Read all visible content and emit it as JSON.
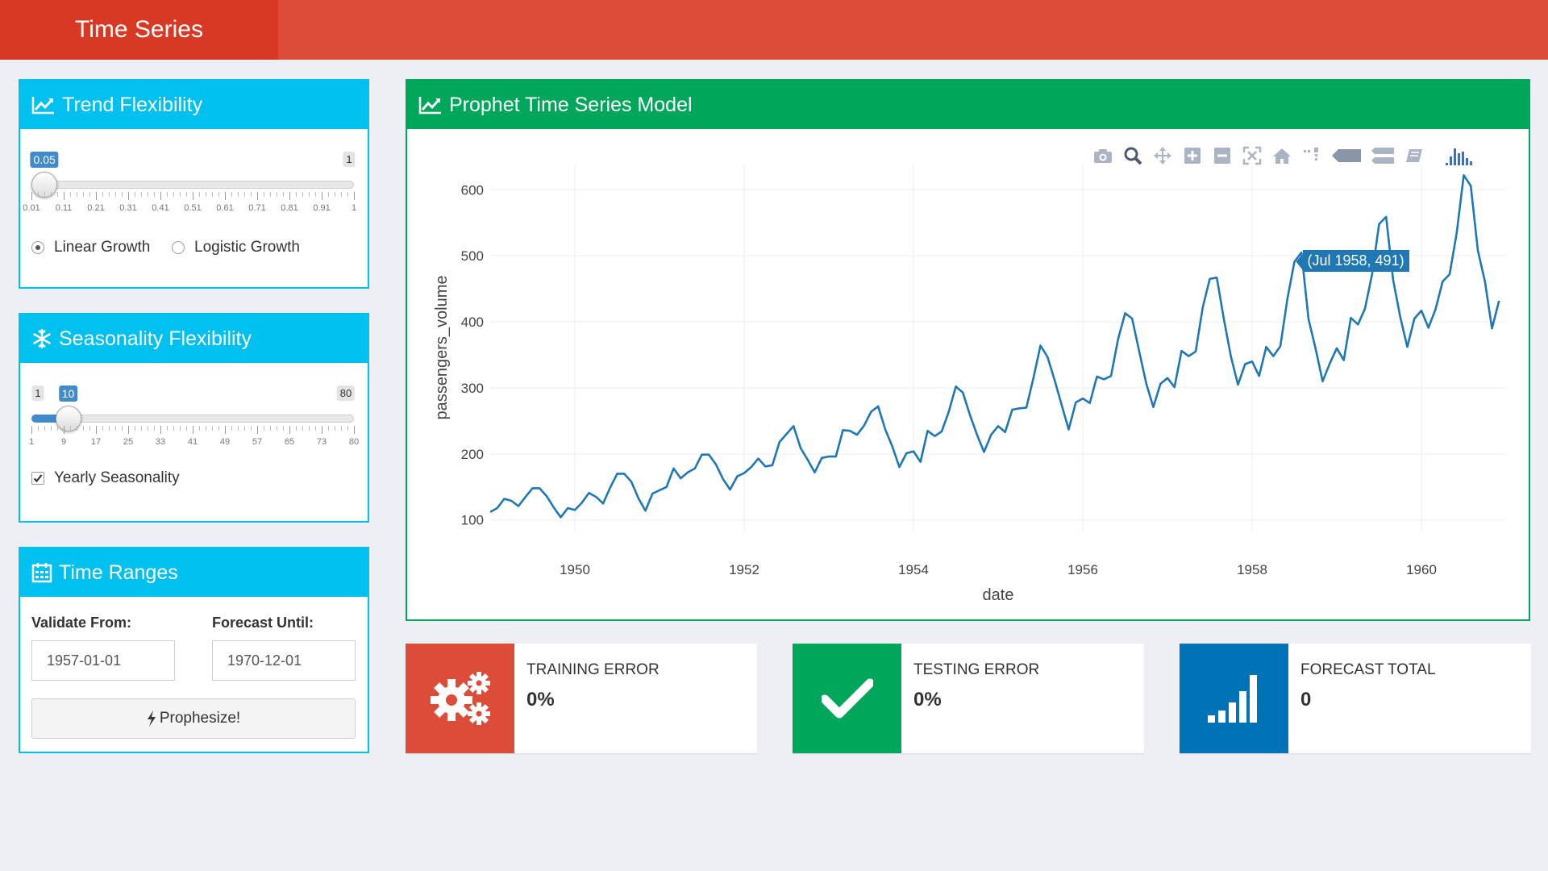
{
  "app": {
    "title": "Time Series"
  },
  "trend": {
    "title": "Trend Flexibility",
    "slider": {
      "value": "0.05",
      "min": "0.01",
      "max": "1",
      "min_value": 0.01,
      "max_value": 1,
      "current": 0.05,
      "ticks": [
        "0.01",
        "0.11",
        "0.21",
        "0.31",
        "0.41",
        "0.51",
        "0.61",
        "0.71",
        "0.81",
        "0.91",
        "1"
      ],
      "max_label": "1"
    },
    "growth": {
      "linear": "Linear Growth",
      "logistic": "Logistic Growth",
      "selected": "linear"
    }
  },
  "seasonality": {
    "title": "Seasonality Flexibility",
    "slider": {
      "value": "10",
      "min_label": "1",
      "max_label": "80",
      "min_value": 1,
      "max_value": 80,
      "current": 10,
      "ticks": [
        "1",
        "9",
        "17",
        "25",
        "33",
        "41",
        "49",
        "57",
        "65",
        "73",
        "80"
      ]
    },
    "yearly": {
      "label": "Yearly Seasonality",
      "checked": true
    }
  },
  "ranges": {
    "title": "Time Ranges",
    "validate_label": "Validate From:",
    "validate_value": "1957-01-01",
    "forecast_label": "Forecast Until:",
    "forecast_value": "1970-12-01",
    "button": "Prophesize!"
  },
  "model": {
    "title": "Prophet Time Series Model"
  },
  "chart_data": {
    "type": "line",
    "title": "",
    "xlabel": "date",
    "ylabel": "passengers_volume",
    "x_tick_labels": [
      "1950",
      "1952",
      "1954",
      "1956",
      "1958",
      "1960"
    ],
    "y_tick_labels": [
      "100",
      "200",
      "300",
      "400",
      "500",
      "600"
    ],
    "xlim": [
      1949.0,
      1961.0
    ],
    "ylim": [
      96,
      626
    ],
    "grid": true,
    "color": "#1f77b4",
    "series": [
      {
        "x_start": "1949-01",
        "frequency": "monthly",
        "values": [
          112,
          118,
          132,
          129,
          121,
          135,
          148,
          148,
          136,
          119,
          104,
          118,
          115,
          126,
          141,
          135,
          125,
          149,
          170,
          170,
          158,
          133,
          114,
          140,
          145,
          150,
          178,
          163,
          172,
          178,
          199,
          199,
          184,
          162,
          146,
          166,
          171,
          180,
          193,
          181,
          183,
          218,
          230,
          242,
          209,
          191,
          172,
          194,
          196,
          196,
          236,
          235,
          229,
          243,
          264,
          272,
          237,
          211,
          180,
          201,
          204,
          188,
          235,
          227,
          234,
          264,
          302,
          293,
          259,
          229,
          203,
          229,
          242,
          233,
          267,
          269,
          270,
          315,
          364,
          347,
          312,
          274,
          237,
          278,
          284,
          277,
          317,
          313,
          318,
          374,
          413,
          405,
          355,
          306,
          271,
          306,
          315,
          301,
          356,
          348,
          355,
          422,
          465,
          467,
          404,
          347,
          305,
          336,
          340,
          318,
          362,
          348,
          363,
          435,
          491,
          505,
          404,
          359,
          310,
          337,
          360,
          342,
          406,
          396,
          420,
          472,
          548,
          559,
          463,
          407,
          362,
          405,
          417,
          391,
          419,
          461,
          472,
          535,
          622,
          606,
          508,
          461,
          390,
          432
        ]
      }
    ],
    "tooltip": {
      "text": "(Jul 1958, 491)",
      "index": 114
    }
  },
  "modebar": {
    "icons": [
      "camera-icon",
      "zoom-icon",
      "pan-icon",
      "zoom-in-icon",
      "zoom-out-icon",
      "autoscale-icon",
      "reset-axes-icon",
      "spike-lines-icon",
      "hover-closest-icon",
      "hover-compare-icon",
      "edit-chart-icon",
      "plotly-logo-icon"
    ]
  },
  "info": {
    "training": {
      "label": "Training Error",
      "value": "0%",
      "color": "#dd4b39"
    },
    "testing": {
      "label": "Testing Error",
      "value": "0%",
      "color": "#00a65a"
    },
    "forecast": {
      "label": "Forecast Total",
      "value": "0",
      "color": "#0073b7"
    }
  }
}
